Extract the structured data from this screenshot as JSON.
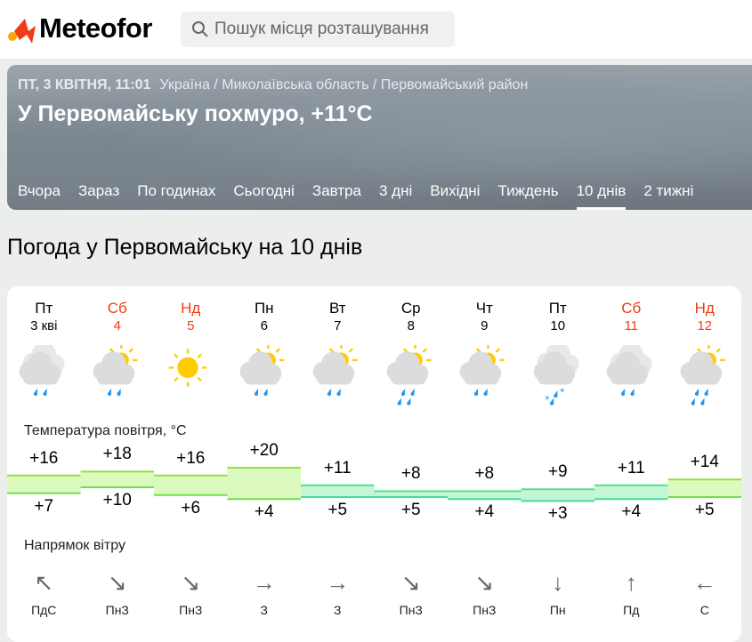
{
  "header": {
    "logo": "Meteofor",
    "search_placeholder": "Пошук місця розташування"
  },
  "hero": {
    "datetime": "ПТ, 3 КВІТНЯ, 11:01",
    "breadcrumb": "Україна / Миколаївська область / Первомайський район",
    "title": "У Первомайську похмуро, +11°C",
    "tabs": [
      "Вчора",
      "Зараз",
      "По годинах",
      "Сьогодні",
      "Завтра",
      "3 дні",
      "Вихідні",
      "Тиждень",
      "10 днів",
      "2 тижні"
    ],
    "active_tab": "10 днів"
  },
  "page_title": "Погода у Первомайську на 10 днів",
  "temp_label": "Температура повітря, °C",
  "wind_label": "Напрямок вітру",
  "colors": {
    "weekend": "#f03c14",
    "rain": "#2196f3",
    "sun": "#ffcc00",
    "cloud": "#dcdcdc"
  },
  "days": [
    {
      "name": "Пт",
      "date": "3 кві",
      "weekend": false,
      "icon": "cloudy-rain",
      "high": "+16",
      "low": "+7",
      "wind": "ПдС",
      "arrow": "↖"
    },
    {
      "name": "Сб",
      "date": "4",
      "weekend": true,
      "icon": "partly-cloudy-rain",
      "high": "+18",
      "low": "+10",
      "wind": "ПнЗ",
      "arrow": "↘"
    },
    {
      "name": "Нд",
      "date": "5",
      "weekend": true,
      "icon": "sunny",
      "high": "+16",
      "low": "+6",
      "wind": "ПнЗ",
      "arrow": "↘"
    },
    {
      "name": "Пн",
      "date": "6",
      "weekend": false,
      "icon": "partly-cloudy-rain",
      "high": "+20",
      "low": "+4",
      "wind": "З",
      "arrow": "→"
    },
    {
      "name": "Вт",
      "date": "7",
      "weekend": false,
      "icon": "partly-cloudy-rain",
      "high": "+11",
      "low": "+5",
      "wind": "З",
      "arrow": "→"
    },
    {
      "name": "Ср",
      "date": "8",
      "weekend": false,
      "icon": "partly-cloudy-heavy-rain",
      "high": "+8",
      "low": "+5",
      "wind": "ПнЗ",
      "arrow": "↘"
    },
    {
      "name": "Чт",
      "date": "9",
      "weekend": false,
      "icon": "partly-cloudy-rain",
      "high": "+8",
      "low": "+4",
      "wind": "ПнЗ",
      "arrow": "↘"
    },
    {
      "name": "Пт",
      "date": "10",
      "weekend": false,
      "icon": "cloudy-rain-snow",
      "high": "+9",
      "low": "+3",
      "wind": "Пн",
      "arrow": "↓"
    },
    {
      "name": "Сб",
      "date": "11",
      "weekend": true,
      "icon": "cloudy-rain",
      "high": "+11",
      "low": "+4",
      "wind": "Пд",
      "arrow": "↑"
    },
    {
      "name": "Нд",
      "date": "12",
      "weekend": true,
      "icon": "partly-cloudy-heavy-rain",
      "high": "+14",
      "low": "+5",
      "wind": "С",
      "arrow": "←"
    }
  ]
}
